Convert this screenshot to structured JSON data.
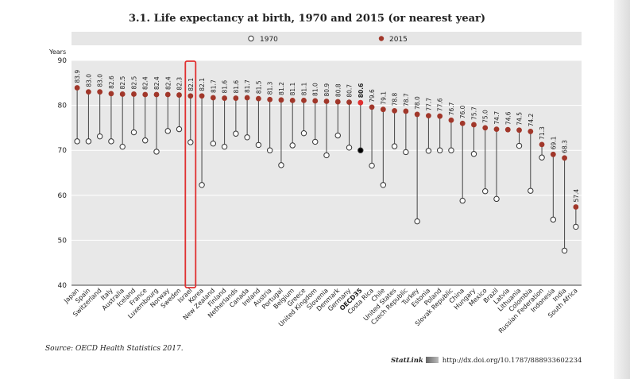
{
  "title": "3.1. Life expectancy at birth, 1970 and 2015 (or nearest year)",
  "source": "Source: OECD Health Statistics 2017.",
  "statlink": {
    "name": "StatLink",
    "url": "http://dx.doi.org/10.1787/888933602234"
  },
  "colors": {
    "dot_2015": "#a1372a",
    "highlight": "#e03030",
    "oecd_2015": "#e03030",
    "oecd_1970": "#000000",
    "legend_bg": "#e6e6e6",
    "plot_bg": "#e8e8e8"
  },
  "chart_data": {
    "type": "scatter",
    "title": "3.1. Life expectancy at birth, 1970 and 2015 (or nearest year)",
    "ylabel": "Years",
    "ylim": [
      40,
      90
    ],
    "yticks": [
      40,
      50,
      60,
      70,
      80,
      90
    ],
    "grid": true,
    "legend_position": "top",
    "highlighted_category": "Israel",
    "categories": [
      "Japan",
      "Spain",
      "Switzerland",
      "Italy",
      "Australia",
      "Iceland",
      "France",
      "Luxembourg",
      "Norway",
      "Sweden",
      "Israel",
      "Korea",
      "New Zealand",
      "Finland",
      "Netherlands",
      "Canada",
      "Ireland",
      "Austria",
      "Portugal",
      "Belgium",
      "Greece",
      "United Kingdom",
      "Slovenia",
      "Denmark",
      "Germany",
      "OECD35",
      "Costa Rica",
      "Chile",
      "United States",
      "Czech Republic",
      "Turkey",
      "Estonia",
      "Poland",
      "Slovak Republic",
      "China",
      "Hungary",
      "Mexico",
      "Brazil",
      "Latvia",
      "Lithuania",
      "Colombia",
      "Russian Federation",
      "Indonesia",
      "India",
      "South Africa"
    ],
    "series": [
      {
        "name": "1970",
        "values": [
          72.0,
          72.0,
          73.1,
          72.0,
          70.8,
          74.0,
          72.2,
          69.7,
          74.3,
          74.7,
          71.8,
          62.3,
          71.5,
          70.8,
          73.7,
          72.9,
          71.2,
          70.0,
          66.7,
          71.1,
          73.8,
          71.9,
          68.9,
          73.3,
          70.6,
          70.0,
          66.6,
          62.3,
          70.9,
          69.6,
          54.2,
          69.9,
          70.0,
          70.0,
          58.8,
          69.2,
          60.9,
          59.2,
          null,
          71.0,
          61.0,
          68.4,
          54.6,
          47.7,
          53.0
        ]
      },
      {
        "name": "2015",
        "values": [
          83.9,
          83.0,
          83.0,
          82.6,
          82.5,
          82.5,
          82.4,
          82.4,
          82.4,
          82.3,
          82.1,
          82.1,
          81.7,
          81.6,
          81.6,
          81.7,
          81.5,
          81.3,
          81.2,
          81.1,
          81.1,
          81.0,
          80.9,
          80.8,
          80.7,
          80.6,
          79.6,
          79.1,
          78.8,
          78.7,
          78.0,
          77.7,
          77.6,
          76.7,
          76.0,
          75.7,
          75.0,
          74.7,
          74.6,
          74.5,
          74.2,
          71.3,
          69.1,
          68.3,
          57.4
        ],
        "labels": [
          "83.9",
          "83.0",
          "83.0",
          "82.6",
          "82.5",
          "82.5",
          "82.4",
          "82.4",
          "82.4",
          "82.3",
          "82.1",
          "82.1",
          "81.7",
          "81.6",
          "81.6",
          "81.7",
          "81.5",
          "81.3",
          "81.2",
          "81.1",
          "81.1",
          "81.0",
          "80.9",
          "80.8",
          "80.7",
          "80.6",
          "79.6",
          "79.1",
          "78.8",
          "78.7",
          "78.0",
          "77.7",
          "77.6",
          "76.7",
          "76.0",
          "75.7",
          "75.0",
          "74.7",
          "74.6",
          "74.5",
          "74.2",
          "71.3",
          "69.1",
          "68.3",
          "57.4"
        ]
      }
    ]
  }
}
